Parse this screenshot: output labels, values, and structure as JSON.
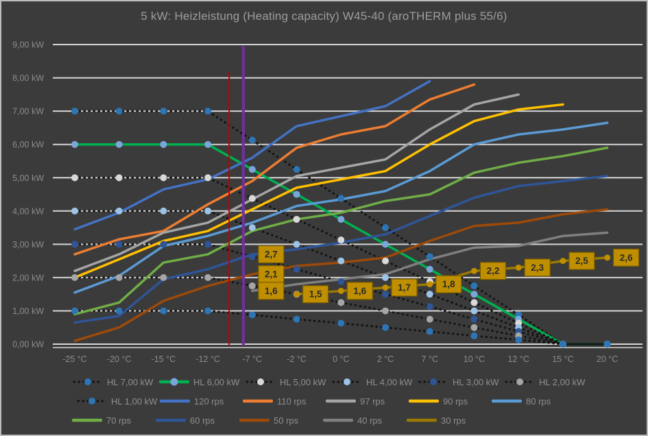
{
  "title": "5 kW: Heizleistung (Heating capacity) W45-40 (aroTHERM plus 55/6)",
  "chart_data": {
    "type": "line",
    "title": "5 kW: Heizleistung (Heating capacity) W45-40 (aroTHERM plus 55/6)",
    "categories": [
      "-25 °C",
      "-20 °C",
      "-15 °C",
      "-12 °C",
      "-7 °C",
      "-2 °C",
      "0 °C",
      "2 °C",
      "7 °C",
      "10 °C",
      "12 °C",
      "15 °C",
      "20 °C"
    ],
    "y_ticks": [
      "9,00 kW",
      "8,00 kW",
      "7,00 kW",
      "6,00 kW",
      "5,00 kW",
      "4,00 kW",
      "3,00 kW",
      "2,00 kW",
      "1,00 kW",
      "0,00 kW"
    ],
    "ylim": [
      0,
      9
    ],
    "grid": true,
    "legend_position": "bottom",
    "colors": {
      "background": "#3b3b3b",
      "gridline": "#d6d6d6",
      "tick_text": "#8c8c8c",
      "title_text": "#9d9d9d",
      "hl_dotted_line": "#141414",
      "label_box_fill": "#bf8f00",
      "label_box_border": "#7a5c00",
      "red_line": "#c00000",
      "purple_line": "#7030a0"
    },
    "series": [
      {
        "name": "HL 7,00 kW",
        "style": "dotted",
        "line_color": "#141414",
        "marker_color": "#2e75b6",
        "values": [
          7,
          7,
          7,
          7,
          6.13,
          5.25,
          4.38,
          3.5,
          2.63,
          1.75,
          0.88,
          0,
          0
        ]
      },
      {
        "name": "HL 6,00 kW",
        "style": "solid",
        "line_color": "#00b050",
        "marker_color": "#7ba6dc",
        "values": [
          6,
          6,
          6,
          6,
          5.25,
          4.5,
          3.75,
          3,
          2.25,
          1.5,
          0.75,
          0,
          0
        ]
      },
      {
        "name": "HL 5,00 kW",
        "style": "dotted",
        "line_color": "#141414",
        "marker_color": "#d9d9d9",
        "values": [
          5,
          5,
          5,
          5,
          4.38,
          3.75,
          3.13,
          2.5,
          1.88,
          1.25,
          0.63,
          0,
          0
        ]
      },
      {
        "name": "HL 4,00 kW",
        "style": "dotted",
        "line_color": "#141414",
        "marker_color": "#9dc3e6",
        "values": [
          4,
          4,
          4,
          4,
          3.5,
          3,
          2.5,
          2,
          1.5,
          1,
          0.5,
          0,
          0
        ]
      },
      {
        "name": "HL 3,00 kW",
        "style": "dotted",
        "line_color": "#141414",
        "marker_color": "#2f5597",
        "values": [
          3,
          3,
          3,
          3,
          2.63,
          2.25,
          1.88,
          1.5,
          1.13,
          0.75,
          0.38,
          0,
          0
        ]
      },
      {
        "name": "HL 2,00 kW",
        "style": "dotted",
        "line_color": "#141414",
        "marker_color": "#a6a6a6",
        "values": [
          2,
          2,
          2,
          2,
          1.75,
          1.5,
          1.25,
          1,
          0.75,
          0.5,
          0.25,
          0,
          0
        ]
      },
      {
        "name": "HL 1,00 kW",
        "style": "dotted",
        "line_color": "#141414",
        "marker_color": "#2e75b6",
        "values": [
          1,
          1,
          1,
          1,
          0.88,
          0.75,
          0.63,
          0.5,
          0.38,
          0.25,
          0.13,
          0,
          0
        ]
      },
      {
        "name": "120 rps",
        "style": "solid",
        "line_color": "#4472c4",
        "values": [
          3.45,
          3.95,
          4.65,
          4.95,
          5.6,
          6.55,
          6.85,
          7.15,
          7.9,
          null,
          null,
          null,
          null
        ]
      },
      {
        "name": "110 rps",
        "style": "solid",
        "line_color": "#ed7d31",
        "values": [
          2.7,
          3.15,
          3.4,
          4.2,
          4.9,
          5.9,
          6.3,
          6.55,
          7.35,
          7.8,
          null,
          null,
          null
        ]
      },
      {
        "name": "97 rps",
        "style": "solid",
        "line_color": "#a5a5a5",
        "values": [
          2.2,
          2.7,
          3.35,
          3.65,
          4.35,
          5.05,
          5.3,
          5.55,
          6.45,
          7.2,
          7.5,
          null,
          null
        ]
      },
      {
        "name": "90 rps",
        "style": "solid",
        "line_color": "#ffc000",
        "values": [
          2.0,
          2.55,
          3.1,
          3.4,
          4.05,
          4.7,
          4.95,
          5.2,
          6.0,
          6.7,
          7.05,
          7.2,
          null
        ]
      },
      {
        "name": "80 rps",
        "style": "solid",
        "line_color": "#5b9bd5",
        "values": [
          1.55,
          2.05,
          2.95,
          3.25,
          3.65,
          4.15,
          4.35,
          4.6,
          5.2,
          6.0,
          6.3,
          6.45,
          6.65
        ]
      },
      {
        "name": "70 rps",
        "style": "solid",
        "line_color": "#70ad47",
        "values": [
          0.9,
          1.25,
          2.45,
          2.7,
          3.4,
          3.75,
          3.95,
          4.3,
          4.5,
          5.15,
          5.45,
          5.65,
          5.9
        ]
      },
      {
        "name": "60 rps",
        "style": "solid",
        "line_color": "#2f5597",
        "values": [
          0.65,
          0.85,
          1.95,
          2.25,
          2.7,
          2.85,
          3.05,
          3.3,
          3.85,
          4.4,
          4.75,
          4.9,
          5.05
        ]
      },
      {
        "name": "50 rps",
        "style": "solid",
        "line_color": "#9c4a0a",
        "values": [
          0.1,
          0.5,
          1.3,
          1.75,
          2.1,
          2.35,
          2.45,
          2.6,
          3.1,
          3.55,
          3.65,
          3.9,
          4.05
        ]
      },
      {
        "name": "40 rps",
        "style": "solid",
        "line_color": "#7f7f7f",
        "values": [
          null,
          null,
          null,
          null,
          1.6,
          1.8,
          1.95,
          2.1,
          2.55,
          2.9,
          2.95,
          3.25,
          3.35
        ]
      },
      {
        "name": "30 rps",
        "style": "solid",
        "line_color": "#9c7a00",
        "marker_color": "#bf8f00",
        "values": [
          null,
          null,
          null,
          null,
          null,
          1.5,
          1.6,
          1.7,
          1.8,
          2.2,
          2.3,
          2.5,
          2.6
        ]
      }
    ],
    "point_labels": [
      {
        "series": "60 rps",
        "index": 4,
        "text": "2,7"
      },
      {
        "series": "50 rps",
        "index": 4,
        "text": "2,1"
      },
      {
        "series": "40 rps",
        "index": 4,
        "text": "1,6"
      },
      {
        "series": "30 rps",
        "index": 5,
        "text": "1,5"
      },
      {
        "series": "30 rps",
        "index": 6,
        "text": "1,6"
      },
      {
        "series": "30 rps",
        "index": 7,
        "text": "1,7"
      },
      {
        "series": "30 rps",
        "index": 8,
        "text": "1,8"
      },
      {
        "series": "30 rps",
        "index": 9,
        "text": "2,2"
      },
      {
        "series": "30 rps",
        "index": 10,
        "text": "2,3"
      },
      {
        "series": "30 rps",
        "index": 11,
        "text": "2,5"
      },
      {
        "series": "30 rps",
        "index": 12,
        "text": "2,6"
      }
    ],
    "vertical_lines": [
      {
        "name": "red-marker-line",
        "color": "#c00000",
        "category_pos": 3.48,
        "top_kw": 8.18,
        "bottom_kw": 0,
        "width": 2
      },
      {
        "name": "purple-marker-line",
        "color": "#7030a0",
        "category_pos": 3.8,
        "top_kw": 8.95,
        "bottom_kw": 0,
        "width": 4
      }
    ]
  },
  "legend": {
    "rows": [
      [
        {
          "label": "HL 7,00 kW",
          "swatch": "dotted",
          "marker": "#2e75b6"
        },
        {
          "label": "HL 6,00 kW",
          "swatch": "line-marker",
          "color": "#00b050",
          "marker": "#7ba6dc"
        },
        {
          "label": "HL 5,00 kW",
          "swatch": "dotted",
          "marker": "#d9d9d9"
        },
        {
          "label": "HL 4,00 kW",
          "swatch": "dotted",
          "marker": "#9dc3e6"
        },
        {
          "label": "HL 3,00 kW",
          "swatch": "dotted",
          "marker": "#2f5597"
        },
        {
          "label": "HL 2,00 kW",
          "swatch": "dotted",
          "marker": "#a6a6a6"
        }
      ],
      [
        {
          "label": "HL 1,00 kW",
          "swatch": "dotted",
          "marker": "#2e75b6"
        },
        {
          "label": "120 rps",
          "swatch": "line",
          "color": "#4472c4"
        },
        {
          "label": "110 rps",
          "swatch": "line",
          "color": "#ed7d31"
        },
        {
          "label": "97 rps",
          "swatch": "line",
          "color": "#a5a5a5"
        },
        {
          "label": "90 rps",
          "swatch": "line",
          "color": "#ffc000"
        },
        {
          "label": "80 rps",
          "swatch": "line",
          "color": "#5b9bd5"
        }
      ],
      [
        {
          "label": "70 rps",
          "swatch": "line",
          "color": "#70ad47"
        },
        {
          "label": "60 rps",
          "swatch": "line",
          "color": "#2f5597"
        },
        {
          "label": "50 rps",
          "swatch": "line",
          "color": "#9c4a0a"
        },
        {
          "label": "40 rps",
          "swatch": "line",
          "color": "#7f7f7f"
        },
        {
          "label": "30 rps",
          "swatch": "line",
          "color": "#9c7a00"
        }
      ]
    ]
  }
}
